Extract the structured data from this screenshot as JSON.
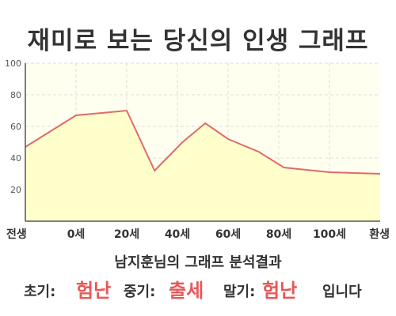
{
  "title": "재미로 보는 당신의 인생 그래프",
  "chart_data": {
    "type": "area",
    "categories": [
      "전생",
      "0세",
      "20세",
      "40세",
      "60세",
      "80세",
      "100세",
      "환생"
    ],
    "ylim": [
      0,
      100
    ],
    "yticks": [
      20,
      40,
      60,
      80,
      100
    ],
    "grid": true,
    "line_color": "#e06a6a",
    "fill_color": "#ffffcc",
    "series": [
      {
        "points": [
          [
            0,
            47
          ],
          [
            1,
            67
          ],
          [
            2,
            70
          ],
          [
            2.55,
            32
          ],
          [
            3.1,
            50
          ],
          [
            3.55,
            62
          ],
          [
            4.0,
            52
          ],
          [
            4.6,
            44
          ],
          [
            5.1,
            34
          ],
          [
            6.0,
            31
          ],
          [
            7.0,
            30
          ]
        ]
      }
    ]
  },
  "summary": {
    "subtitle": "남지훈님의 그래프 분석결과",
    "early_label": "초기:",
    "early_value": "험난",
    "middle_label": "중기:",
    "middle_value": "출세",
    "late_label": "말기:",
    "late_value": "험난",
    "suffix": "입니다"
  },
  "colors": {
    "accent": "#e85757",
    "text": "#333333",
    "axis": "#555555"
  }
}
